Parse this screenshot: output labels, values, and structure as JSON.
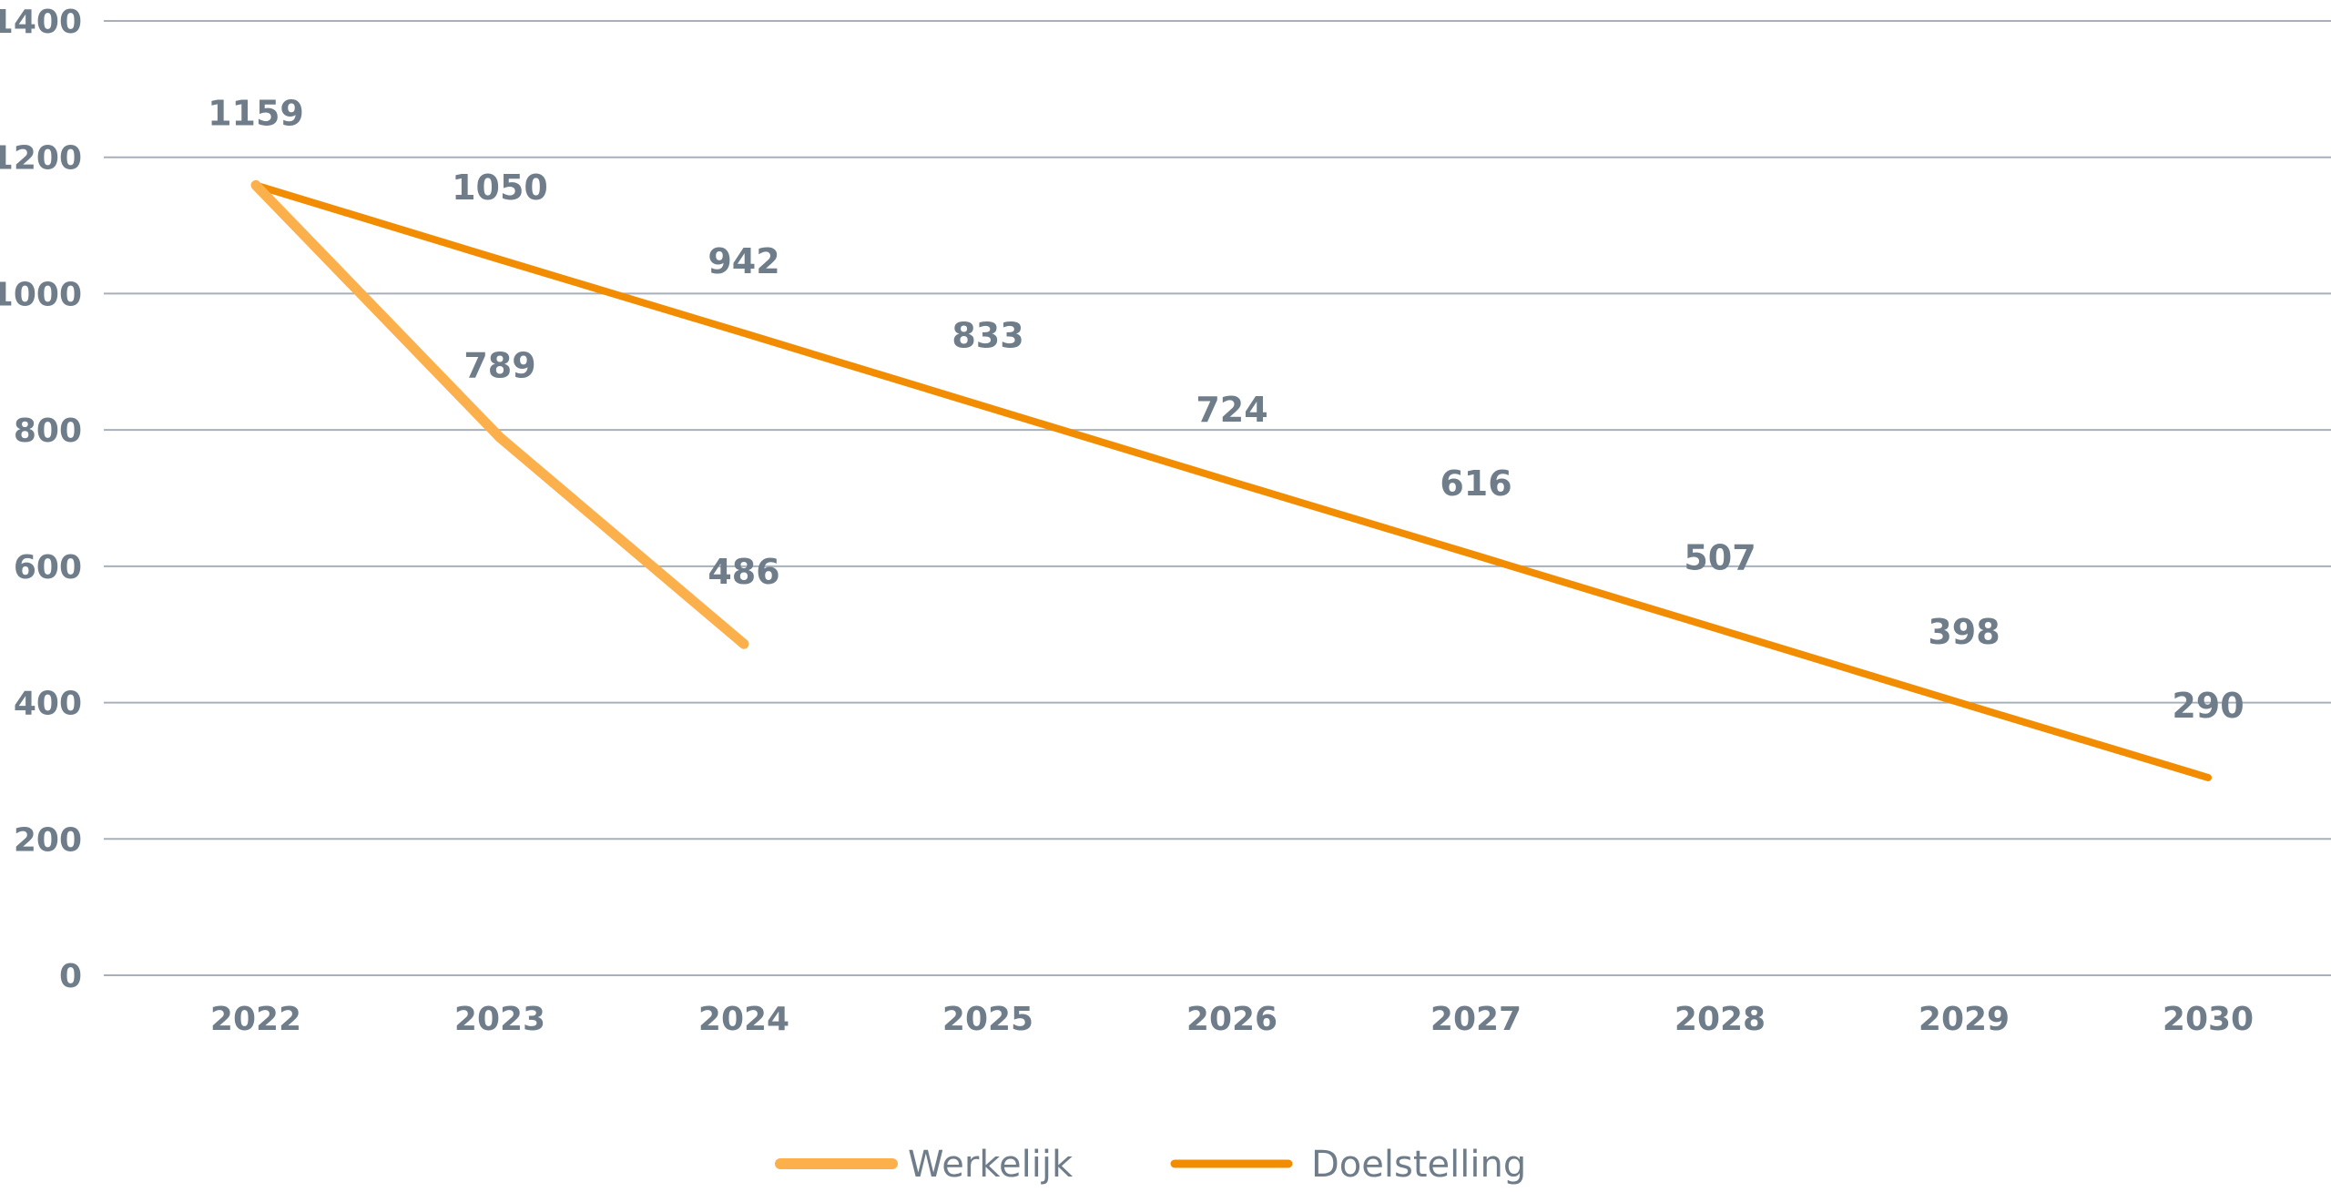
{
  "chart_data": {
    "type": "line",
    "title": "",
    "xlabel": "",
    "ylabel": "",
    "categories": [
      "2022",
      "2023",
      "2024",
      "2025",
      "2026",
      "2027",
      "2028",
      "2029",
      "2030"
    ],
    "ylim": [
      0,
      1400
    ],
    "yticks": [
      0,
      200,
      400,
      600,
      800,
      1000,
      1200,
      1400
    ],
    "grid": true,
    "legend_position": "bottom",
    "series": [
      {
        "name": "Werkelijk",
        "color": "#FBB04C",
        "values": [
          1159,
          789,
          486,
          null,
          null,
          null,
          null,
          null,
          null
        ],
        "labels": [
          null,
          "789",
          "486",
          null,
          null,
          null,
          null,
          null,
          null
        ]
      },
      {
        "name": "Doelstelling",
        "color": "#F28C00",
        "values": [
          1159,
          1050,
          942,
          833,
          724,
          616,
          507,
          398,
          290
        ],
        "labels": [
          "1159",
          "1050",
          "942",
          "833",
          "724",
          "616",
          "507",
          "398",
          "290"
        ]
      }
    ]
  }
}
